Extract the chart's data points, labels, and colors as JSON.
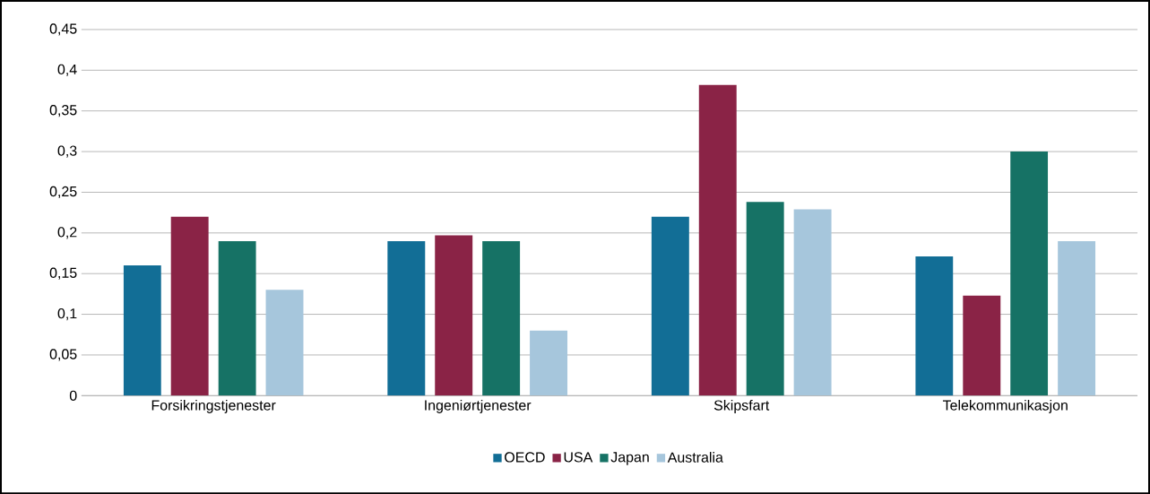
{
  "chart_data": {
    "type": "bar",
    "categories": [
      "Forsikringstjenester",
      "Ingeniørtjenester",
      "Skipsfart",
      "Telekommunikasjon"
    ],
    "series": [
      {
        "name": "OECD",
        "color": "#126e96",
        "values": [
          0.16,
          0.19,
          0.22,
          0.171
        ]
      },
      {
        "name": "USA",
        "color": "#8a2346",
        "values": [
          0.22,
          0.197,
          0.382,
          0.123
        ]
      },
      {
        "name": "Japan",
        "color": "#167265",
        "values": [
          0.19,
          0.19,
          0.238,
          0.3
        ]
      },
      {
        "name": "Australia",
        "color": "#a6c6dc",
        "values": [
          0.13,
          0.08,
          0.229,
          0.19
        ]
      }
    ],
    "ylim": [
      0,
      0.45
    ],
    "yticks": [
      0,
      {
        "value": 0.05,
        "label": "0,05"
      },
      {
        "value": 0.1,
        "label": "0,1"
      },
      {
        "value": 0.15,
        "label": "0,15"
      },
      {
        "value": 0.2,
        "label": "0,2"
      },
      {
        "value": 0.25,
        "label": "0,25"
      },
      {
        "value": 0.3,
        "label": "0,3"
      },
      {
        "value": 0.35,
        "label": "0,35"
      },
      {
        "value": 0.4,
        "label": "0,4"
      },
      {
        "value": 0.45,
        "label": "0,45"
      }
    ],
    "grid": "y",
    "legend": "bottom"
  }
}
